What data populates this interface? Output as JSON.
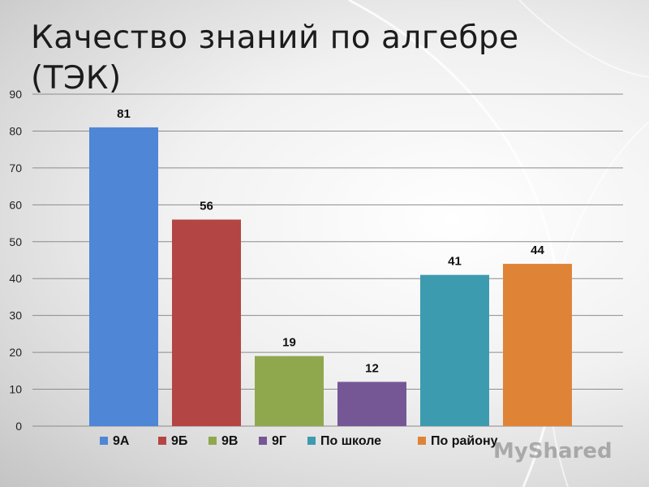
{
  "title": "Качество знаний по алгебре (ТЭК)",
  "watermark": "MyShared",
  "chart_data": {
    "type": "bar",
    "categories": [
      "9А",
      "9Б",
      "9В",
      "9Г",
      "По школе",
      "По району"
    ],
    "values": [
      81,
      56,
      19,
      12,
      41,
      44
    ],
    "series": [
      {
        "name": "9А",
        "value": 81,
        "color": "#4f86d6"
      },
      {
        "name": "9Б",
        "value": 56,
        "color": "#b34644"
      },
      {
        "name": "9В",
        "value": 19,
        "color": "#8fa84e"
      },
      {
        "name": "9Г",
        "value": 12,
        "color": "#765796"
      },
      {
        "name": "По школе",
        "value": 41,
        "color": "#3d9bb0"
      },
      {
        "name": "По району",
        "value": 44,
        "color": "#df8437"
      }
    ],
    "yticks": [
      0,
      10,
      20,
      30,
      40,
      50,
      60,
      70,
      80,
      90
    ],
    "ylim": [
      0,
      90
    ],
    "xlabel": "",
    "ylabel": "",
    "grid": true,
    "legend": "bottom",
    "data_labels": true
  }
}
